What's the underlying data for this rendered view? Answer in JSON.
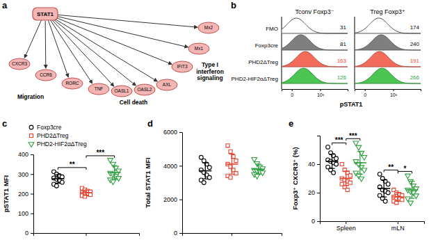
{
  "diagram": {
    "label": "a",
    "center": "STAT1",
    "nodes": [
      "CXCR3",
      "CCR6",
      "RORC",
      "TNF",
      "OASL1",
      "OASL2",
      "AXL",
      "IFIT3",
      "Mx1",
      "Mx2"
    ],
    "groups": [
      "Migration",
      "Cell death",
      "Type I interferon signaling"
    ]
  },
  "flow": {
    "label": "b",
    "xlabel": "pSTAT1",
    "xlim": [
      -100,
      20000
    ],
    "xticks": [
      {
        "value": 0,
        "label": "0"
      },
      {
        "value": 1000,
        "label": "10³"
      }
    ],
    "rows": [
      {
        "name": "FMO",
        "color": "#ffffff",
        "number_color": "#000000"
      },
      {
        "name": "Foxp3cre",
        "color": "#7f7f7f",
        "number_color": "#000000"
      },
      {
        "name": "PHD2ΔTreg",
        "color": "#f26b5b",
        "number_color": "#e8402f"
      },
      {
        "name": "PHD2-HIF2αΔTreg",
        "color": "#4cc552",
        "number_color": "#2e9e3e"
      }
    ],
    "panels": [
      {
        "title": "Tconv Foxp3⁻",
        "values": [
          31,
          81,
          163,
          126
        ]
      },
      {
        "title": "Treg Foxp3⁺",
        "values": [
          174,
          240,
          191,
          266
        ]
      }
    ]
  },
  "chart_data": [
    {
      "type": "scatter",
      "panel": "c",
      "ylabel": "pSTAT1 MFI",
      "categories": [
        null
      ],
      "ylim": [
        0,
        400
      ],
      "yticks": [
        0,
        100,
        200,
        300,
        400
      ],
      "legend": "top-left",
      "tick_labels": "y",
      "series": [
        {
          "name": "Foxp3cre",
          "color": "#000000",
          "marker": "circle",
          "values": [
            [
              312,
              300,
              292,
              286,
              280,
              274,
              268,
              258,
              248,
              240
            ]
          ],
          "mean": [
            276
          ],
          "error": [
            22
          ]
        },
        {
          "name": "PHD2ΔTreg",
          "color": "#e8402f",
          "marker": "square",
          "values": [
            [
              228,
              220,
              214,
              210,
              206,
              202,
              198,
              195,
              190,
              186
            ]
          ],
          "mean": [
            205
          ],
          "error": [
            13
          ]
        },
        {
          "name": "PHD2-HIF2αΔTreg",
          "color": "#2e9e3e",
          "marker": "triangle-down",
          "values": [
            [
              372,
              352,
              332,
              318,
              306,
              298,
              290,
              280,
              272,
              262
            ]
          ],
          "mean": [
            308
          ],
          "error": [
            35
          ]
        }
      ],
      "annotations": [
        {
          "text": "**",
          "series": [
            0,
            1
          ],
          "category": 0
        },
        {
          "text": "***",
          "series": [
            1,
            2
          ],
          "category": 0
        }
      ]
    },
    {
      "type": "scatter",
      "panel": "d",
      "ylabel": "Total STAT1 MFI",
      "categories": [
        null
      ],
      "ylim": [
        0,
        6000
      ],
      "yticks": [
        0,
        2000,
        4000,
        6000
      ],
      "tick_labels": "y",
      "series": [
        {
          "color": "#000000",
          "marker": "circle",
          "values": [
            [
              4500,
              4300,
              4100,
              3900,
              3750,
              3600,
              3450,
              3300,
              3150,
              3000
            ]
          ],
          "mean": [
            3700
          ],
          "error": [
            480
          ]
        },
        {
          "color": "#e8402f",
          "marker": "square",
          "values": [
            [
              5200,
              4850,
              4550,
              4300,
              4100,
              3950,
              3750,
              3550,
              3400,
              3300
            ]
          ],
          "mean": [
            4100
          ],
          "error": [
            600
          ]
        },
        {
          "color": "#2e9e3e",
          "marker": "triangle-down",
          "values": [
            [
              4400,
              4150,
              3950,
              3850,
              3750,
              3700,
              3650,
              3600,
              3500,
              3400
            ]
          ],
          "mean": [
            3800
          ],
          "error": [
            300
          ]
        }
      ]
    },
    {
      "type": "scatter",
      "panel": "e",
      "ylabel": "Foxp3⁺ CXCR3⁺ (%)",
      "categories": [
        "Spleen",
        "mLN"
      ],
      "ylim": [
        0,
        60
      ],
      "yticks": [
        0,
        20,
        40
      ],
      "series": [
        {
          "color": "#000000",
          "marker": "circle",
          "values": [
            [
              52,
              48,
              46,
              44,
              43,
              42,
              41,
              40,
              38,
              36,
              34
            ],
            [
              33,
              30,
              28,
              26,
              24,
              22,
              21,
              20,
              18,
              16,
              14
            ]
          ],
          "mean": [
            42,
            23
          ],
          "error": [
            5,
            6
          ]
        },
        {
          "color": "#e8402f",
          "marker": "square",
          "values": [
            [
              40,
              36,
              34,
              32,
              30,
              29,
              28,
              27,
              26,
              24,
              22
            ],
            [
              22,
              20,
              19,
              18,
              17,
              16,
              16,
              15,
              14,
              13
            ]
          ],
          "mean": [
            30,
            17
          ],
          "error": [
            5,
            3
          ]
        },
        {
          "color": "#2e9e3e",
          "marker": "triangle-down",
          "values": [
            [
              55,
              52,
              48,
              45,
              42,
              40,
              38,
              36,
              34,
              32,
              30
            ],
            [
              32,
              28,
              25,
              23,
              22,
              21,
              20,
              18,
              16,
              13
            ]
          ],
          "mean": [
            41,
            22
          ],
          "error": [
            8,
            6
          ]
        }
      ],
      "annotations": [
        {
          "text": "***",
          "series": [
            0,
            1
          ],
          "category": 0
        },
        {
          "text": "***",
          "series": [
            1,
            2
          ],
          "category": 0
        },
        {
          "text": "**",
          "series": [
            0,
            1
          ],
          "category": 1
        },
        {
          "text": "*",
          "series": [
            1,
            2
          ],
          "category": 1
        }
      ]
    }
  ]
}
